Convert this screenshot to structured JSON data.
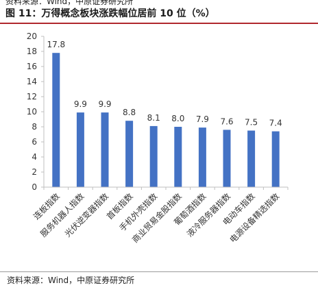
{
  "header": {
    "top_source_text": "资料来源：Wind，中原证券研究所",
    "title": "图 11：万得概念板块涨跌幅位居前 10 位（%）"
  },
  "footer": {
    "source": "资料来源：Wind，中原证券研究所"
  },
  "colors": {
    "bar": "#4472C4",
    "title_rule": "#b0272d",
    "axis": "#bfbfbf"
  },
  "chart_data": {
    "type": "bar",
    "title": "",
    "xlabel": "",
    "ylabel": "",
    "ylim": [
      0,
      20
    ],
    "yticks": [
      0,
      2,
      4,
      6,
      8,
      10,
      12,
      14,
      16,
      18,
      20
    ],
    "grid": false,
    "legend": "none",
    "categories": [
      "连板指数",
      "服务机器人指数",
      "光伏逆变器指数",
      "首板指数",
      "手机外壳指数",
      "商业贸易金股指数",
      "葡萄酒指数",
      "液冷服务器指数",
      "电动车指数",
      "电源设备精选指数"
    ],
    "values": [
      17.8,
      9.9,
      9.9,
      8.8,
      8.1,
      8.0,
      7.9,
      7.6,
      7.5,
      7.4
    ],
    "data_labels": [
      "17.8",
      "9.9",
      "9.9",
      "8.8",
      "8.1",
      "8.0",
      "7.9",
      "7.6",
      "7.5",
      "7.4"
    ]
  }
}
